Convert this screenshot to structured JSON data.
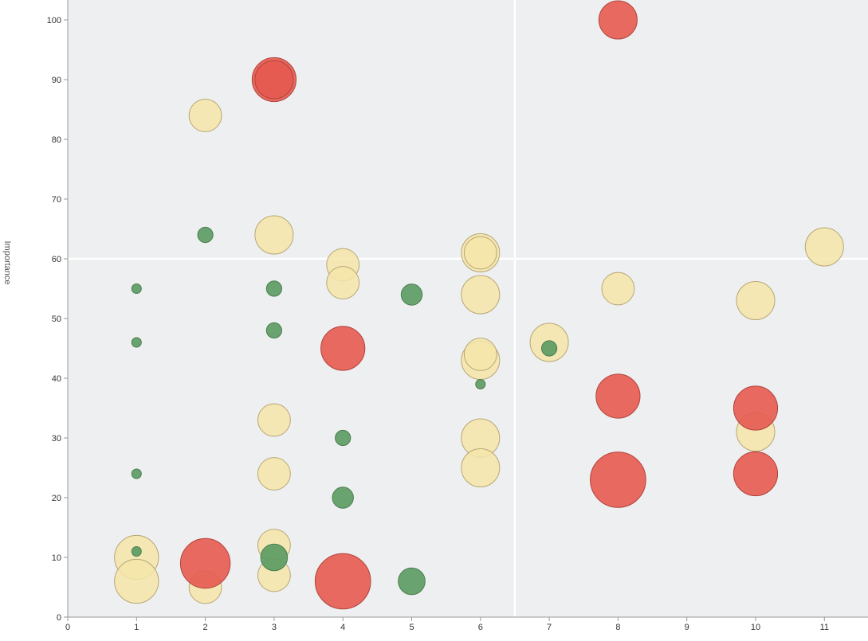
{
  "chart_data": {
    "type": "scatter",
    "title": "",
    "xlabel": "",
    "ylabel": "Importance",
    "xlim": [
      0,
      11.6
    ],
    "ylim": [
      0,
      104
    ],
    "xticks": [
      0,
      1,
      2,
      3,
      4,
      5,
      6,
      7,
      8,
      9,
      10,
      11
    ],
    "yticks": [
      0,
      10,
      20,
      30,
      40,
      50,
      60,
      70,
      80,
      90,
      100
    ],
    "grid": false,
    "quadrant_lines": {
      "x": 6.5,
      "y": 60
    },
    "colors": {
      "background": "#eeeff1",
      "yellow_fill": "#f5e5a9",
      "yellow_stroke": "#b7a774",
      "green_fill": "#5a9a60",
      "green_stroke": "#4b7d50",
      "red_fill": "#e65a50",
      "red_stroke": "#b0443c",
      "quadrant_line": "#ffffff"
    },
    "points": [
      {
        "x": 8,
        "y": 100,
        "size": 6,
        "color": "red"
      },
      {
        "x": 3,
        "y": 90,
        "size": 7,
        "color": "red"
      },
      {
        "x": 3,
        "y": 90,
        "size": 6,
        "color": "red"
      },
      {
        "x": 2,
        "y": 84,
        "size": 5,
        "color": "yellow"
      },
      {
        "x": 2,
        "y": 64,
        "size": 2,
        "color": "green"
      },
      {
        "x": 3,
        "y": 64,
        "size": 6,
        "color": "yellow"
      },
      {
        "x": 11,
        "y": 62,
        "size": 6,
        "color": "yellow"
      },
      {
        "x": 6,
        "y": 61,
        "size": 6,
        "color": "yellow"
      },
      {
        "x": 6,
        "y": 61,
        "size": 5,
        "color": "yellow"
      },
      {
        "x": 4,
        "y": 59,
        "size": 5,
        "color": "yellow"
      },
      {
        "x": 4,
        "y": 56,
        "size": 5,
        "color": "yellow"
      },
      {
        "x": 1,
        "y": 55,
        "size": 1,
        "color": "green"
      },
      {
        "x": 3,
        "y": 55,
        "size": 2,
        "color": "green"
      },
      {
        "x": 8,
        "y": 55,
        "size": 5,
        "color": "yellow"
      },
      {
        "x": 5,
        "y": 54,
        "size": 3,
        "color": "green"
      },
      {
        "x": 6,
        "y": 54,
        "size": 6,
        "color": "yellow"
      },
      {
        "x": 10,
        "y": 53,
        "size": 6,
        "color": "yellow"
      },
      {
        "x": 3,
        "y": 48,
        "size": 2,
        "color": "green"
      },
      {
        "x": 1,
        "y": 46,
        "size": 1,
        "color": "green"
      },
      {
        "x": 7,
        "y": 46,
        "size": 6,
        "color": "yellow"
      },
      {
        "x": 7,
        "y": 45,
        "size": 2,
        "color": "green"
      },
      {
        "x": 4,
        "y": 45,
        "size": 7,
        "color": "red"
      },
      {
        "x": 6,
        "y": 43,
        "size": 6,
        "color": "yellow"
      },
      {
        "x": 6,
        "y": 44,
        "size": 5,
        "color": "yellow"
      },
      {
        "x": 6,
        "y": 39,
        "size": 1,
        "color": "green"
      },
      {
        "x": 8,
        "y": 37,
        "size": 7,
        "color": "red"
      },
      {
        "x": 10,
        "y": 35,
        "size": 7,
        "color": "red"
      },
      {
        "x": 3,
        "y": 33,
        "size": 5,
        "color": "yellow"
      },
      {
        "x": 10,
        "y": 31,
        "size": 6,
        "color": "yellow"
      },
      {
        "x": 4,
        "y": 30,
        "size": 2,
        "color": "green"
      },
      {
        "x": 6,
        "y": 30,
        "size": 6,
        "color": "yellow"
      },
      {
        "x": 6,
        "y": 25,
        "size": 6,
        "color": "yellow"
      },
      {
        "x": 1,
        "y": 24,
        "size": 1,
        "color": "green"
      },
      {
        "x": 3,
        "y": 24,
        "size": 5,
        "color": "yellow"
      },
      {
        "x": 10,
        "y": 24,
        "size": 7,
        "color": "red"
      },
      {
        "x": 8,
        "y": 23,
        "size": 9,
        "color": "red"
      },
      {
        "x": 4,
        "y": 20,
        "size": 3,
        "color": "green"
      },
      {
        "x": 3,
        "y": 12,
        "size": 5,
        "color": "yellow"
      },
      {
        "x": 1,
        "y": 11,
        "size": 1,
        "color": "green"
      },
      {
        "x": 1,
        "y": 10,
        "size": 7,
        "color": "yellow"
      },
      {
        "x": 3,
        "y": 10,
        "size": 4,
        "color": "green"
      },
      {
        "x": 2,
        "y": 9,
        "size": 8,
        "color": "red"
      },
      {
        "x": 3,
        "y": 7,
        "size": 5,
        "color": "yellow"
      },
      {
        "x": 1,
        "y": 6,
        "size": 7,
        "color": "yellow"
      },
      {
        "x": 4,
        "y": 6,
        "size": 9,
        "color": "red"
      },
      {
        "x": 5,
        "y": 6,
        "size": 4,
        "color": "green"
      },
      {
        "x": 2,
        "y": 5,
        "size": 5,
        "color": "yellow"
      }
    ]
  }
}
